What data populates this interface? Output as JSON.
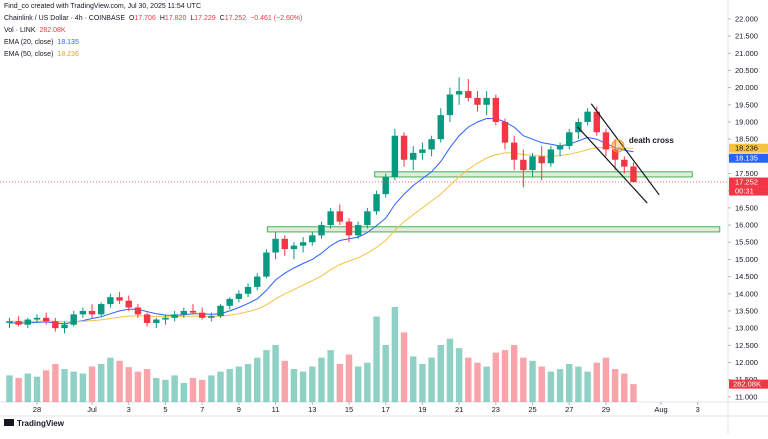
{
  "chart_data": {
    "type": "candlestick",
    "credit": "Find_co created with TradingView.com, Jul 30, 2025 11:54 UTC",
    "symbol": "Chainlink / US Dollar · 4h · COINBASE",
    "ohlc_legend": [
      {
        "key": "O",
        "value": "17.706"
      },
      {
        "key": "H",
        "value": "17.820"
      },
      {
        "key": "L",
        "value": "17.229"
      },
      {
        "key": "C",
        "value": "17.252"
      }
    ],
    "change": "−0.461 (−2.60%)",
    "footer": "TradingView",
    "up_color": "#089981",
    "down_color": "#f23645",
    "xlim": [
      -1.03,
      78.3
    ],
    "ylim": [
      10.85,
      22.55
    ],
    "xticks": [
      {
        "value": 3,
        "label": "28"
      },
      {
        "value": 9,
        "label": "Jul"
      },
      {
        "value": 13,
        "label": "3"
      },
      {
        "value": 17,
        "label": "5"
      },
      {
        "value": 21,
        "label": "7"
      },
      {
        "value": 25,
        "label": "9"
      },
      {
        "value": 29,
        "label": "11"
      },
      {
        "value": 33,
        "label": "13"
      },
      {
        "value": 37,
        "label": "15"
      },
      {
        "value": 41,
        "label": "17"
      },
      {
        "value": 45,
        "label": "19"
      },
      {
        "value": 49,
        "label": "21"
      },
      {
        "value": 53,
        "label": "23"
      },
      {
        "value": 57,
        "label": "25"
      },
      {
        "value": 61,
        "label": "27"
      },
      {
        "value": 65,
        "label": "29"
      },
      {
        "value": 71,
        "label": "Aug"
      },
      {
        "value": 75,
        "label": "3"
      }
    ],
    "yticks": [
      {
        "value": 22,
        "label": "22.000"
      },
      {
        "value": 21.5,
        "label": "21.500"
      },
      {
        "value": 21,
        "label": "21.000"
      },
      {
        "value": 20.5,
        "label": "20.500"
      },
      {
        "value": 20,
        "label": "20.000"
      },
      {
        "value": 19.5,
        "label": "19.500"
      },
      {
        "value": 19,
        "label": "19.000"
      },
      {
        "value": 18.5,
        "label": "18.500"
      },
      {
        "value": 18,
        "label": "18.000"
      },
      {
        "value": 17.5,
        "label": "17.500"
      },
      {
        "value": 17,
        "label": "17.000"
      },
      {
        "value": 16.5,
        "label": "16.500"
      },
      {
        "value": 16,
        "label": "16.000"
      },
      {
        "value": 15.5,
        "label": "15.500"
      },
      {
        "value": 15,
        "label": "15.000"
      },
      {
        "value": 14.5,
        "label": "14.500"
      },
      {
        "value": 14,
        "label": "14.000"
      },
      {
        "value": 13.5,
        "label": "13.500"
      },
      {
        "value": 13,
        "label": "13.000"
      },
      {
        "value": 12.5,
        "label": "12.500"
      },
      {
        "value": 12,
        "label": "12.000"
      },
      {
        "value": 11.5,
        "label": "11.500"
      },
      {
        "value": 11,
        "label": "11.000"
      }
    ],
    "ohlc": [
      [
        13.15,
        13.3,
        13.0,
        13.2
      ],
      [
        13.2,
        13.35,
        13.05,
        13.1
      ],
      [
        13.1,
        13.3,
        13.0,
        13.25
      ],
      [
        13.25,
        13.4,
        13.15,
        13.3
      ],
      [
        13.3,
        13.45,
        13.1,
        13.2
      ],
      [
        13.2,
        13.3,
        12.9,
        13.0
      ],
      [
        13.0,
        13.2,
        12.85,
        13.1
      ],
      [
        13.1,
        13.5,
        13.05,
        13.4
      ],
      [
        13.4,
        13.6,
        13.3,
        13.5
      ],
      [
        13.5,
        13.7,
        13.3,
        13.4
      ],
      [
        13.4,
        13.75,
        13.35,
        13.7
      ],
      [
        13.7,
        14.0,
        13.6,
        13.9
      ],
      [
        13.9,
        14.05,
        13.7,
        13.8
      ],
      [
        13.8,
        13.95,
        13.5,
        13.6
      ],
      [
        13.6,
        13.7,
        13.3,
        13.4
      ],
      [
        13.4,
        13.45,
        13.05,
        13.15
      ],
      [
        13.15,
        13.3,
        13.0,
        13.25
      ],
      [
        13.25,
        13.4,
        13.1,
        13.3
      ],
      [
        13.3,
        13.5,
        13.2,
        13.4
      ],
      [
        13.4,
        13.6,
        13.3,
        13.5
      ],
      [
        13.5,
        13.7,
        13.4,
        13.45
      ],
      [
        13.45,
        13.6,
        13.25,
        13.3
      ],
      [
        13.3,
        13.45,
        13.2,
        13.35
      ],
      [
        13.35,
        13.7,
        13.3,
        13.65
      ],
      [
        13.65,
        13.9,
        13.55,
        13.85
      ],
      [
        13.85,
        14.1,
        13.75,
        14.0
      ],
      [
        14.0,
        14.3,
        13.9,
        14.2
      ],
      [
        14.2,
        14.6,
        14.1,
        14.5
      ],
      [
        14.5,
        15.3,
        14.45,
        15.2
      ],
      [
        15.2,
        15.8,
        15.0,
        15.6
      ],
      [
        15.6,
        15.7,
        15.1,
        15.3
      ],
      [
        15.3,
        15.5,
        15.0,
        15.4
      ],
      [
        15.4,
        15.65,
        15.2,
        15.5
      ],
      [
        15.5,
        15.8,
        15.4,
        15.7
      ],
      [
        15.7,
        16.1,
        15.6,
        16.0
      ],
      [
        16.0,
        16.5,
        15.9,
        16.4
      ],
      [
        16.4,
        16.6,
        16.0,
        16.1
      ],
      [
        16.1,
        16.2,
        15.5,
        15.7
      ],
      [
        15.7,
        16.1,
        15.6,
        16.0
      ],
      [
        16.0,
        16.5,
        15.9,
        16.4
      ],
      [
        16.4,
        17.0,
        16.3,
        16.9
      ],
      [
        16.9,
        17.5,
        16.8,
        17.4
      ],
      [
        17.4,
        18.8,
        17.3,
        18.6
      ],
      [
        18.6,
        18.7,
        17.7,
        17.9
      ],
      [
        17.9,
        18.3,
        17.6,
        18.1
      ],
      [
        18.1,
        18.4,
        17.9,
        18.2
      ],
      [
        18.2,
        18.6,
        18.0,
        18.5
      ],
      [
        18.5,
        19.4,
        18.4,
        19.2
      ],
      [
        19.2,
        20.0,
        19.0,
        19.8
      ],
      [
        19.8,
        20.3,
        19.5,
        19.9
      ],
      [
        19.9,
        20.25,
        19.6,
        19.7
      ],
      [
        19.7,
        19.9,
        19.3,
        19.5
      ],
      [
        19.5,
        19.9,
        19.2,
        19.7
      ],
      [
        19.7,
        19.8,
        18.9,
        19.0
      ],
      [
        19.0,
        19.1,
        18.2,
        18.4
      ],
      [
        18.4,
        18.6,
        17.6,
        17.9
      ],
      [
        17.9,
        18.2,
        17.1,
        17.6
      ],
      [
        17.6,
        18.1,
        17.4,
        18.0
      ],
      [
        18.0,
        18.3,
        17.3,
        17.8
      ],
      [
        17.8,
        18.3,
        17.7,
        18.2
      ],
      [
        18.2,
        18.4,
        18.0,
        18.3
      ],
      [
        18.3,
        18.8,
        18.2,
        18.7
      ],
      [
        18.7,
        19.1,
        18.5,
        19.0
      ],
      [
        19.0,
        19.4,
        18.9,
        19.3
      ],
      [
        19.3,
        19.45,
        18.6,
        18.7
      ],
      [
        18.7,
        18.8,
        18.0,
        18.2
      ],
      [
        18.2,
        18.5,
        17.6,
        17.9
      ],
      [
        17.9,
        18.0,
        17.5,
        17.7
      ],
      [
        17.706,
        17.82,
        17.229,
        17.252
      ]
    ],
    "volume": {
      "name": "Vol · LINK",
      "value_label": "282.08K",
      "label_color": "#f23645",
      "up_color": "rgba(8,153,129,0.45)",
      "down_color": "rgba(242,54,69,0.45)",
      "values": [
        420,
        380,
        450,
        400,
        500,
        600,
        520,
        480,
        450,
        560,
        600,
        700,
        650,
        550,
        480,
        520,
        380,
        350,
        420,
        300,
        380,
        350,
        420,
        480,
        520,
        560,
        600,
        700,
        820,
        900,
        650,
        520,
        480,
        560,
        700,
        820,
        600,
        750,
        560,
        620,
        1350,
        900,
        1500,
        1100,
        720,
        600,
        700,
        900,
        1000,
        850,
        700,
        620,
        560,
        780,
        820,
        900,
        700,
        650,
        560,
        480,
        520,
        600,
        560,
        480,
        620,
        700,
        520,
        450,
        282.08
      ]
    },
    "series": [
      {
        "name": "EMA (20, close)",
        "color": "#2962ff",
        "values": [
          13.15,
          13.15,
          13.15,
          13.17,
          13.18,
          13.15,
          13.13,
          13.17,
          13.22,
          13.28,
          13.33,
          13.42,
          13.5,
          13.55,
          13.55,
          13.48,
          13.42,
          13.38,
          13.37,
          13.39,
          13.42,
          13.42,
          13.4,
          13.42,
          13.5,
          13.6,
          13.72,
          13.85,
          14.1,
          14.4,
          14.6,
          14.75,
          14.88,
          15.0,
          15.18,
          15.4,
          15.55,
          15.6,
          15.65,
          15.78,
          15.98,
          16.2,
          16.6,
          16.9,
          17.15,
          17.35,
          17.55,
          17.85,
          18.25,
          18.6,
          18.85,
          19.0,
          19.1,
          19.1,
          19.0,
          18.85,
          18.6,
          18.5,
          18.4,
          18.35,
          18.3,
          18.35,
          18.45,
          18.55,
          18.5,
          18.38,
          18.25,
          18.18,
          18.135
        ]
      },
      {
        "name": "EMA (50, close)",
        "color": "#f5c242",
        "values": [
          13.2,
          13.2,
          13.2,
          13.2,
          13.2,
          13.2,
          13.18,
          13.18,
          13.2,
          13.22,
          13.24,
          13.28,
          13.32,
          13.35,
          13.36,
          13.35,
          13.34,
          13.33,
          13.33,
          13.34,
          13.35,
          13.35,
          13.34,
          13.35,
          13.38,
          13.42,
          13.48,
          13.55,
          13.68,
          13.85,
          14.0,
          14.12,
          14.25,
          14.38,
          14.52,
          14.7,
          14.85,
          14.95,
          15.05,
          15.18,
          15.35,
          15.55,
          15.85,
          16.1,
          16.3,
          16.5,
          16.7,
          16.9,
          17.15,
          17.4,
          17.62,
          17.8,
          17.95,
          18.05,
          18.1,
          18.1,
          18.05,
          18.03,
          18.0,
          18.0,
          18.02,
          18.06,
          18.12,
          18.2,
          18.25,
          18.26,
          18.25,
          18.24,
          18.236
        ]
      }
    ],
    "price_labels": [
      {
        "value": 18.236,
        "color": "#f5c242"
      },
      {
        "value": 18.135,
        "color": "#2962ff"
      },
      {
        "value": 17.252,
        "color": "#f23645",
        "countdown": "00:31"
      }
    ],
    "zones": [
      {
        "x": [
          39.8,
          74.4
        ],
        "y": [
          17.4,
          17.55
        ]
      },
      {
        "x": [
          28.1,
          77.4
        ],
        "y": [
          15.8,
          15.95
        ]
      }
    ],
    "trendlines": [
      {
        "x": [
          63.4,
          70.8
        ],
        "y": [
          19.53,
          16.88
        ]
      },
      {
        "x": [
          61.9,
          69.5
        ],
        "y": [
          18.86,
          16.64
        ]
      }
    ],
    "annotations": [
      {
        "text": "death cross",
        "x": 67.5,
        "y": 18.47
      }
    ],
    "marker": {
      "x": 66.3,
      "y": 18.3
    }
  }
}
